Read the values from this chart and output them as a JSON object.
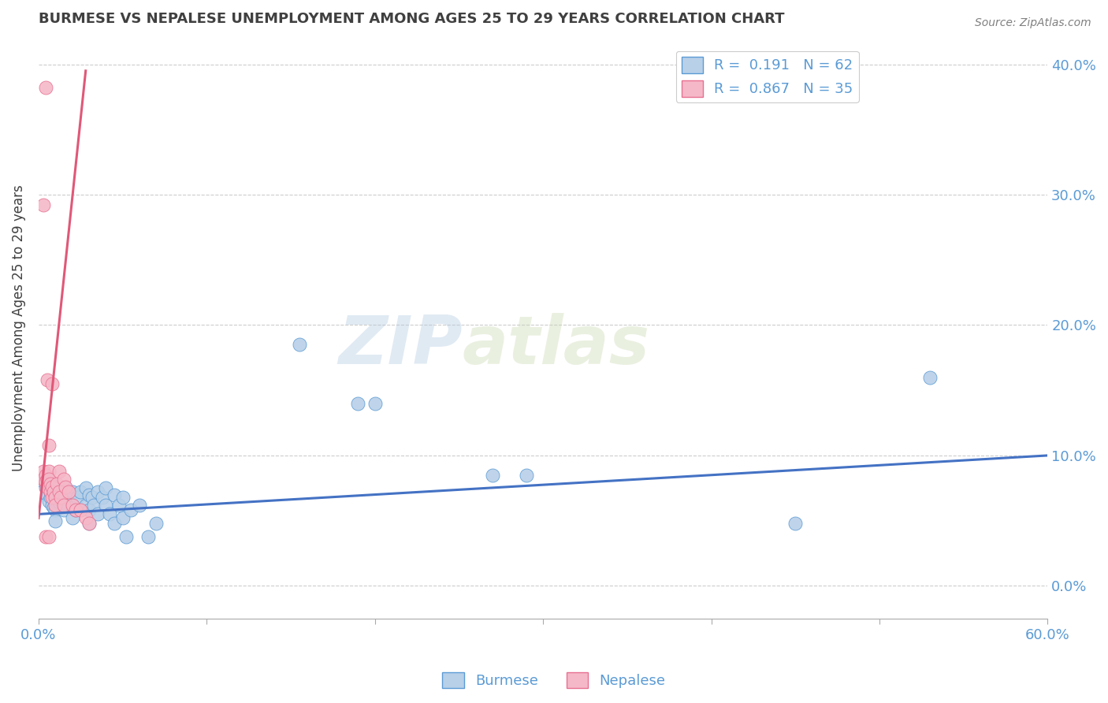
{
  "title": "BURMESE VS NEPALESE UNEMPLOYMENT AMONG AGES 25 TO 29 YEARS CORRELATION CHART",
  "source": "Source: ZipAtlas.com",
  "ylabel": "Unemployment Among Ages 25 to 29 years",
  "watermark_zip": "ZIP",
  "watermark_atlas": "atlas",
  "xlim": [
    0.0,
    0.6
  ],
  "ylim": [
    -0.025,
    0.42
  ],
  "yticks": [
    0.0,
    0.1,
    0.2,
    0.3,
    0.4
  ],
  "xticks": [
    0.0,
    0.1,
    0.2,
    0.3,
    0.4,
    0.5,
    0.6
  ],
  "blue_R": 0.191,
  "blue_N": 62,
  "pink_R": 0.867,
  "pink_N": 35,
  "blue_fill": "#b8d0e8",
  "pink_fill": "#f5b8c8",
  "blue_edge": "#5b9bd5",
  "pink_edge": "#e87090",
  "blue_line": "#4472c4",
  "pink_line": "#e05878",
  "tick_color": "#5b9bd5",
  "label_color": "#5b9bd5",
  "title_color": "#404040",
  "ylabel_color": "#404040",
  "source_color": "#808080",
  "legend_blue": "Burmese",
  "legend_pink": "Nepalese",
  "blue_scatter": [
    [
      0.003,
      0.08
    ],
    [
      0.004,
      0.075
    ],
    [
      0.005,
      0.082
    ],
    [
      0.005,
      0.07
    ],
    [
      0.006,
      0.078
    ],
    [
      0.006,
      0.065
    ],
    [
      0.007,
      0.072
    ],
    [
      0.007,
      0.068
    ],
    [
      0.008,
      0.076
    ],
    [
      0.008,
      0.062
    ],
    [
      0.009,
      0.07
    ],
    [
      0.009,
      0.06
    ],
    [
      0.01,
      0.074
    ],
    [
      0.01,
      0.058
    ],
    [
      0.01,
      0.05
    ],
    [
      0.011,
      0.068
    ],
    [
      0.012,
      0.072
    ],
    [
      0.012,
      0.064
    ],
    [
      0.013,
      0.068
    ],
    [
      0.014,
      0.065
    ],
    [
      0.015,
      0.072
    ],
    [
      0.015,
      0.058
    ],
    [
      0.016,
      0.075
    ],
    [
      0.017,
      0.062
    ],
    [
      0.018,
      0.068
    ],
    [
      0.02,
      0.072
    ],
    [
      0.02,
      0.06
    ],
    [
      0.02,
      0.052
    ],
    [
      0.022,
      0.058
    ],
    [
      0.023,
      0.068
    ],
    [
      0.025,
      0.072
    ],
    [
      0.025,
      0.058
    ],
    [
      0.028,
      0.075
    ],
    [
      0.028,
      0.062
    ],
    [
      0.03,
      0.07
    ],
    [
      0.03,
      0.058
    ],
    [
      0.03,
      0.048
    ],
    [
      0.032,
      0.068
    ],
    [
      0.033,
      0.062
    ],
    [
      0.035,
      0.072
    ],
    [
      0.035,
      0.055
    ],
    [
      0.038,
      0.068
    ],
    [
      0.04,
      0.075
    ],
    [
      0.04,
      0.062
    ],
    [
      0.042,
      0.055
    ],
    [
      0.045,
      0.07
    ],
    [
      0.045,
      0.048
    ],
    [
      0.048,
      0.062
    ],
    [
      0.05,
      0.068
    ],
    [
      0.05,
      0.052
    ],
    [
      0.052,
      0.038
    ],
    [
      0.055,
      0.058
    ],
    [
      0.06,
      0.062
    ],
    [
      0.065,
      0.038
    ],
    [
      0.07,
      0.048
    ],
    [
      0.155,
      0.185
    ],
    [
      0.19,
      0.14
    ],
    [
      0.2,
      0.14
    ],
    [
      0.27,
      0.085
    ],
    [
      0.29,
      0.085
    ],
    [
      0.45,
      0.048
    ],
    [
      0.53,
      0.16
    ]
  ],
  "pink_scatter": [
    [
      0.003,
      0.088
    ],
    [
      0.003,
      0.082
    ],
    [
      0.004,
      0.085
    ],
    [
      0.004,
      0.08
    ],
    [
      0.005,
      0.082
    ],
    [
      0.005,
      0.076
    ],
    [
      0.006,
      0.088
    ],
    [
      0.006,
      0.082
    ],
    [
      0.007,
      0.078
    ],
    [
      0.007,
      0.072
    ],
    [
      0.008,
      0.076
    ],
    [
      0.008,
      0.068
    ],
    [
      0.009,
      0.072
    ],
    [
      0.01,
      0.068
    ],
    [
      0.01,
      0.062
    ],
    [
      0.011,
      0.078
    ],
    [
      0.012,
      0.088
    ],
    [
      0.012,
      0.072
    ],
    [
      0.013,
      0.068
    ],
    [
      0.015,
      0.082
    ],
    [
      0.015,
      0.062
    ],
    [
      0.016,
      0.076
    ],
    [
      0.018,
      0.072
    ],
    [
      0.02,
      0.062
    ],
    [
      0.022,
      0.058
    ],
    [
      0.025,
      0.058
    ],
    [
      0.028,
      0.052
    ],
    [
      0.03,
      0.048
    ],
    [
      0.004,
      0.382
    ],
    [
      0.005,
      0.158
    ],
    [
      0.008,
      0.155
    ],
    [
      0.006,
      0.108
    ],
    [
      0.003,
      0.292
    ],
    [
      0.004,
      0.038
    ],
    [
      0.006,
      0.038
    ]
  ],
  "blue_trend_x": [
    0.0,
    0.6
  ],
  "blue_trend_y": [
    0.055,
    0.1
  ],
  "pink_trend_x": [
    0.0,
    0.028
  ],
  "pink_trend_y": [
    0.052,
    0.395
  ]
}
